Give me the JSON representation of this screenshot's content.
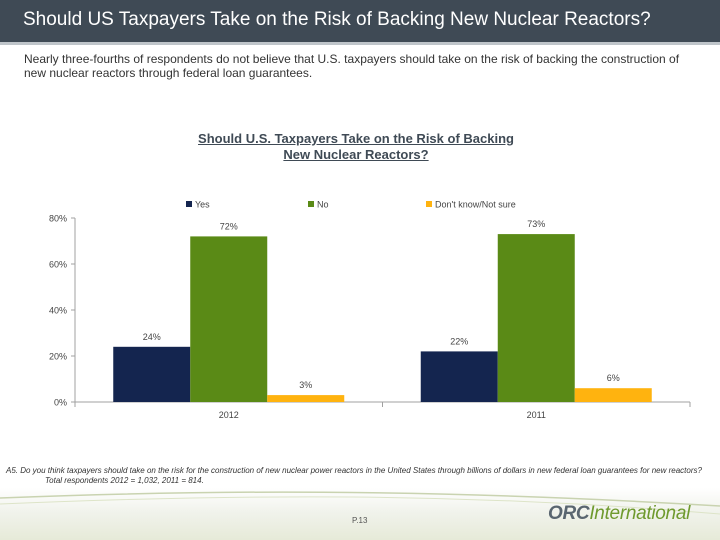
{
  "header": {
    "title": "Should US Taxpayers Take on the Risk of Backing New Nuclear Reactors?"
  },
  "intro": {
    "text": "Nearly three-fourths of respondents do not believe that U.S. taxpayers should take on the risk of backing the construction of new nuclear reactors through federal loan guarantees."
  },
  "chart_data": {
    "type": "bar",
    "title_lines": [
      "Should U.S. Taxpayers Take on the Risk of Backing",
      "New Nuclear Reactors?"
    ],
    "categories": [
      "2012",
      "2011"
    ],
    "series": [
      {
        "name": "Yes",
        "values": [
          24,
          22
        ],
        "labels": [
          "24%",
          "22%"
        ],
        "color": "#14254f"
      },
      {
        "name": "No",
        "values": [
          72,
          73
        ],
        "labels": [
          "72%",
          "73%"
        ],
        "color": "#5a8a16"
      },
      {
        "name": "Don't know/Not sure",
        "values": [
          3,
          6
        ],
        "labels": [
          "3%",
          "6%"
        ],
        "color": "#ffb30f"
      }
    ],
    "y_ticks": [
      0,
      20,
      40,
      60,
      80
    ],
    "y_tick_labels": [
      "0%",
      "20%",
      "40%",
      "60%",
      "80%"
    ],
    "ylim": [
      0,
      80
    ],
    "legend_position": "top",
    "grid": false
  },
  "footnote": {
    "question": "A5. Do you think taxpayers should take on the risk for the construction of new nuclear power reactors in the United States through billions of dollars in new federal loan guarantees for new reactors?",
    "base": "Total respondents 2012 = 1,032, 2011 = 814."
  },
  "footer": {
    "page_number": "P.13",
    "logo_bold": "ORC",
    "logo_light": "International"
  }
}
